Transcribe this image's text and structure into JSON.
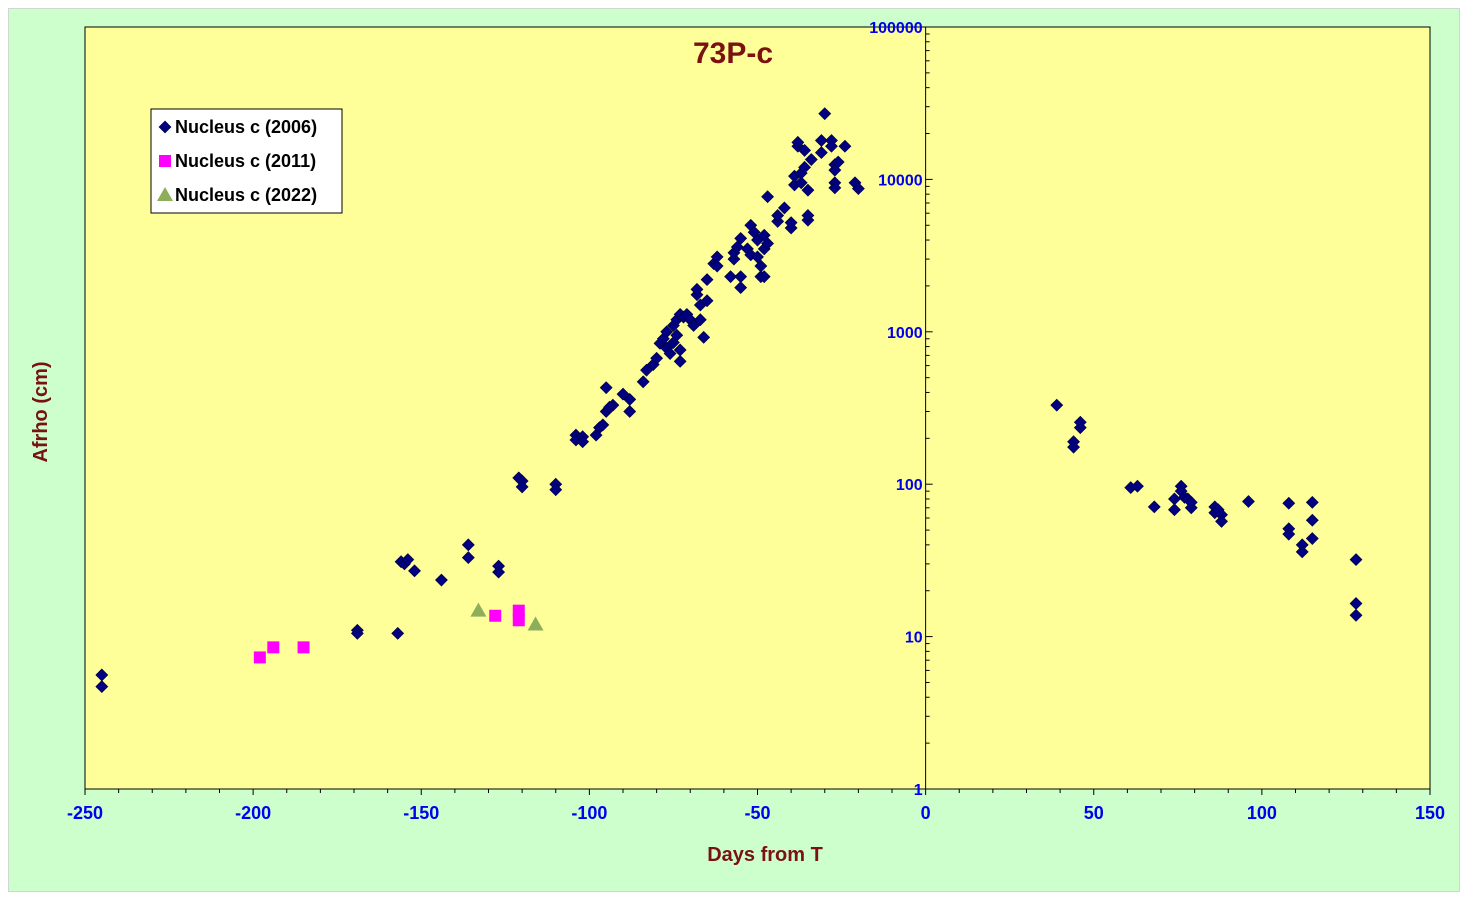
{
  "chart_data": {
    "type": "scatter",
    "title": "73P-c",
    "xlabel": "Days from T",
    "ylabel": "Afrho (cm)",
    "xlim": [
      -250,
      150
    ],
    "ylim": [
      1,
      100000
    ],
    "yscale": "log",
    "xticks": [
      "-250",
      "-200",
      "-150",
      "-100",
      "-50",
      "0",
      "50",
      "100",
      "150"
    ],
    "yticks": [
      "1",
      "10",
      "100",
      "1000",
      "10000",
      "100000"
    ],
    "legend_position": "top-left",
    "background_color": "#ffff99",
    "series": [
      {
        "name": "Nucleus c (2006)",
        "color": "#000080",
        "marker": "diamond",
        "points": [
          [
            -245,
            5.6
          ],
          [
            -245,
            4.7
          ],
          [
            -169,
            11
          ],
          [
            -169,
            10.5
          ],
          [
            -157,
            10.5
          ],
          [
            -156,
            31
          ],
          [
            -155,
            30
          ],
          [
            -154,
            32
          ],
          [
            -152,
            27
          ],
          [
            -144,
            23.5
          ],
          [
            -136,
            40
          ],
          [
            -136,
            33
          ],
          [
            -127,
            29
          ],
          [
            -127,
            26.5
          ],
          [
            -121,
            110
          ],
          [
            -120,
            105
          ],
          [
            -120,
            96
          ],
          [
            -110,
            100
          ],
          [
            -110,
            92
          ],
          [
            -104,
            210
          ],
          [
            -104,
            195
          ],
          [
            -102,
            205
          ],
          [
            -102,
            190
          ],
          [
            -98,
            210
          ],
          [
            -97,
            235
          ],
          [
            -96,
            245
          ],
          [
            -95,
            300
          ],
          [
            -95,
            430
          ],
          [
            -94,
            320
          ],
          [
            -93,
            330
          ],
          [
            -90,
            390
          ],
          [
            -88,
            360
          ],
          [
            -88,
            300
          ],
          [
            -84,
            470
          ],
          [
            -83,
            560
          ],
          [
            -81,
            610
          ],
          [
            -80,
            670
          ],
          [
            -79,
            840
          ],
          [
            -78,
            900
          ],
          [
            -77,
            780
          ],
          [
            -77,
            1000
          ],
          [
            -76,
            720
          ],
          [
            -75,
            1100
          ],
          [
            -75,
            850
          ],
          [
            -74,
            1200
          ],
          [
            -74,
            950
          ],
          [
            -73,
            1300
          ],
          [
            -73,
            640
          ],
          [
            -73,
            760
          ],
          [
            -72,
            1250
          ],
          [
            -71,
            1300
          ],
          [
            -70,
            1200
          ],
          [
            -69,
            1100
          ],
          [
            -68,
            1750
          ],
          [
            -68,
            1900
          ],
          [
            -67,
            1500
          ],
          [
            -67,
            1200
          ],
          [
            -66,
            920
          ],
          [
            -65,
            1600
          ],
          [
            -65,
            2200
          ],
          [
            -63,
            2800
          ],
          [
            -62,
            3100
          ],
          [
            -62,
            2700
          ],
          [
            -58,
            2300
          ],
          [
            -57,
            3000
          ],
          [
            -57,
            3300
          ],
          [
            -56,
            3600
          ],
          [
            -55,
            4100
          ],
          [
            -55,
            2300
          ],
          [
            -55,
            1950
          ],
          [
            -53,
            3500
          ],
          [
            -52,
            3200
          ],
          [
            -52,
            5000
          ],
          [
            -51,
            4500
          ],
          [
            -50,
            4000
          ],
          [
            -50,
            3100
          ],
          [
            -49,
            2700
          ],
          [
            -49,
            2300
          ],
          [
            -48,
            3500
          ],
          [
            -48,
            4300
          ],
          [
            -48,
            2300
          ],
          [
            -47,
            3800
          ],
          [
            -47,
            7700
          ],
          [
            -44,
            5300
          ],
          [
            -44,
            5800
          ],
          [
            -42,
            6500
          ],
          [
            -40,
            4800
          ],
          [
            -40,
            5200
          ],
          [
            -39,
            9200
          ],
          [
            -39,
            10500
          ],
          [
            -38,
            16500
          ],
          [
            -38,
            17500
          ],
          [
            -37,
            11000
          ],
          [
            -37,
            9500
          ],
          [
            -36,
            12000
          ],
          [
            -36,
            15500
          ],
          [
            -35,
            5400
          ],
          [
            -35,
            5800
          ],
          [
            -35,
            8500
          ],
          [
            -34,
            13500
          ],
          [
            -31,
            18000
          ],
          [
            -31,
            15000
          ],
          [
            -30,
            27000
          ],
          [
            -28,
            18000
          ],
          [
            -28,
            16500
          ],
          [
            -27,
            12500
          ],
          [
            -27,
            11500
          ],
          [
            -27,
            9500
          ],
          [
            -27,
            8800
          ],
          [
            -26,
            13000
          ],
          [
            -24,
            16500
          ],
          [
            -21,
            9500
          ],
          [
            -20,
            8700
          ]
        ]
      },
      {
        "name": "Nucleus c (2011)",
        "color": "#ff00ff",
        "marker": "square",
        "points": [
          [
            -198,
            7.3
          ],
          [
            -194,
            8.5
          ],
          [
            -185,
            8.5
          ],
          [
            -128,
            13.7
          ],
          [
            -121,
            14.8
          ],
          [
            -121,
            12.8
          ]
        ]
      },
      {
        "name": "Nucleus c (2022)",
        "color": "#8fae5c",
        "marker": "triangle",
        "points": [
          [
            -133,
            14.8
          ],
          [
            -116,
            12
          ]
        ]
      },
      {
        "color": "#000080",
        "marker": "diamond",
        "points": [
          [
            39,
            330
          ],
          [
            44,
            190
          ],
          [
            44,
            175
          ],
          [
            46,
            235
          ],
          [
            46,
            255
          ],
          [
            61,
            95
          ],
          [
            63,
            97
          ],
          [
            68,
            71
          ],
          [
            74,
            80
          ],
          [
            74,
            68
          ],
          [
            76,
            97
          ],
          [
            76,
            90
          ],
          [
            77,
            82
          ],
          [
            78,
            80
          ],
          [
            79,
            70
          ],
          [
            79,
            76
          ],
          [
            86,
            71
          ],
          [
            86,
            65
          ],
          [
            87,
            68
          ],
          [
            88,
            63
          ],
          [
            88,
            57
          ],
          [
            96,
            77
          ],
          [
            108,
            75
          ],
          [
            108,
            51
          ],
          [
            108,
            47
          ],
          [
            112,
            40
          ],
          [
            112,
            36
          ],
          [
            115,
            76
          ],
          [
            115,
            58
          ],
          [
            115,
            44
          ],
          [
            128,
            32
          ],
          [
            128,
            16.5
          ],
          [
            128,
            13.8
          ]
        ]
      }
    ]
  }
}
